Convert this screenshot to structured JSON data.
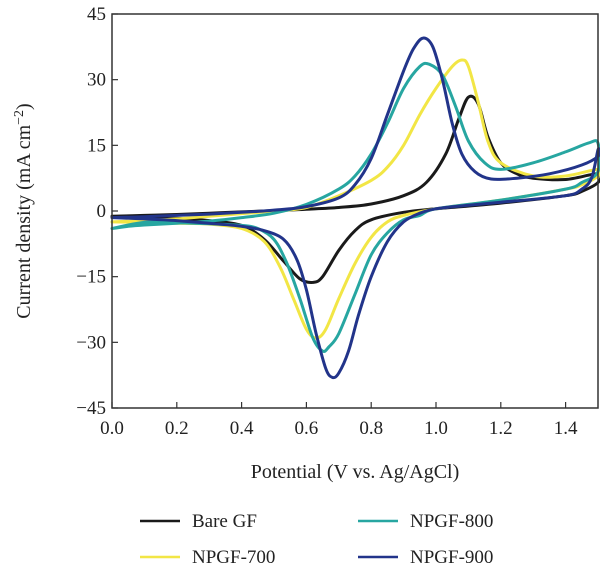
{
  "chart_data": {
    "type": "line",
    "xlabel": "Potential (V vs. Ag/AgCl)",
    "ylabel_main": "Current density (mA cm",
    "ylabel_sup": "−2",
    "ylabel_close": ")",
    "xlim": [
      0.0,
      1.5
    ],
    "ylim": [
      -45,
      45
    ],
    "xticks": [
      "0.0",
      "0.2",
      "0.4",
      "0.6",
      "0.8",
      "1.0",
      "1.2",
      "1.4"
    ],
    "xtick_values": [
      0.0,
      0.2,
      0.4,
      0.6,
      0.8,
      1.0,
      1.2,
      1.4
    ],
    "yticks": [
      "45",
      "30",
      "15",
      "0",
      "−15",
      "−30",
      "−45"
    ],
    "ytick_values": [
      45,
      30,
      15,
      0,
      -15,
      -30,
      -45
    ],
    "grid": false,
    "legend_position": "bottom",
    "series": [
      {
        "name": "Bare GF",
        "color": "#1a1a1a",
        "points": [
          [
            0.0,
            -1.2
          ],
          [
            0.1,
            -1.0
          ],
          [
            0.2,
            -0.8
          ],
          [
            0.3,
            -0.5
          ],
          [
            0.4,
            -0.2
          ],
          [
            0.5,
            0.1
          ],
          [
            0.6,
            0.4
          ],
          [
            0.7,
            0.8
          ],
          [
            0.8,
            1.6
          ],
          [
            0.9,
            3.5
          ],
          [
            0.97,
            6.5
          ],
          [
            1.03,
            13
          ],
          [
            1.07,
            21
          ],
          [
            1.1,
            26
          ],
          [
            1.13,
            24.5
          ],
          [
            1.16,
            17
          ],
          [
            1.2,
            11
          ],
          [
            1.25,
            8.5
          ],
          [
            1.3,
            7.5
          ],
          [
            1.4,
            7.2
          ],
          [
            1.5,
            8.5
          ],
          [
            1.5,
            6.5
          ],
          [
            1.45,
            4.5
          ],
          [
            1.4,
            3.5
          ],
          [
            1.2,
            1.8
          ],
          [
            1.0,
            0.5
          ],
          [
            0.9,
            -0.3
          ],
          [
            0.8,
            -2
          ],
          [
            0.75,
            -4.5
          ],
          [
            0.7,
            -9
          ],
          [
            0.65,
            -15
          ],
          [
            0.62,
            -16.3
          ],
          [
            0.58,
            -15.5
          ],
          [
            0.53,
            -11.5
          ],
          [
            0.47,
            -6.5
          ],
          [
            0.4,
            -3.3
          ],
          [
            0.3,
            -2.2
          ],
          [
            0.2,
            -1.7
          ],
          [
            0.1,
            -1.4
          ],
          [
            0.0,
            -1.2
          ]
        ]
      },
      {
        "name": "NPGF-700",
        "color": "#f2e645",
        "points": [
          [
            0.0,
            -2.5
          ],
          [
            0.1,
            -2.2
          ],
          [
            0.2,
            -1.8
          ],
          [
            0.3,
            -1.2
          ],
          [
            0.4,
            -0.6
          ],
          [
            0.5,
            0.0
          ],
          [
            0.6,
            0.8
          ],
          [
            0.7,
            3.5
          ],
          [
            0.8,
            7
          ],
          [
            0.85,
            10
          ],
          [
            0.9,
            15
          ],
          [
            0.95,
            22
          ],
          [
            1.0,
            28
          ],
          [
            1.05,
            33
          ],
          [
            1.08,
            34.5
          ],
          [
            1.1,
            33
          ],
          [
            1.13,
            25
          ],
          [
            1.16,
            16
          ],
          [
            1.2,
            11
          ],
          [
            1.3,
            8
          ],
          [
            1.4,
            8
          ],
          [
            1.5,
            9.5
          ],
          [
            1.5,
            8
          ],
          [
            1.45,
            6
          ],
          [
            1.4,
            5
          ],
          [
            1.2,
            2.5
          ],
          [
            1.0,
            0.5
          ],
          [
            0.9,
            -1
          ],
          [
            0.85,
            -2.5
          ],
          [
            0.8,
            -6
          ],
          [
            0.75,
            -12
          ],
          [
            0.7,
            -20
          ],
          [
            0.66,
            -27
          ],
          [
            0.63,
            -29
          ],
          [
            0.6,
            -27
          ],
          [
            0.56,
            -20
          ],
          [
            0.52,
            -13
          ],
          [
            0.47,
            -7
          ],
          [
            0.4,
            -4
          ],
          [
            0.3,
            -3
          ],
          [
            0.2,
            -2.8
          ],
          [
            0.1,
            -2.6
          ],
          [
            0.0,
            -2.5
          ]
        ]
      },
      {
        "name": "NPGF-800",
        "color": "#27a6a1",
        "points": [
          [
            0.0,
            -4
          ],
          [
            0.05,
            -3.5
          ],
          [
            0.1,
            -3.2
          ],
          [
            0.2,
            -2.8
          ],
          [
            0.3,
            -2.3
          ],
          [
            0.4,
            -1.5
          ],
          [
            0.5,
            -0.5
          ],
          [
            0.6,
            1.5
          ],
          [
            0.7,
            5
          ],
          [
            0.75,
            8
          ],
          [
            0.8,
            13
          ],
          [
            0.85,
            20
          ],
          [
            0.9,
            28
          ],
          [
            0.95,
            33
          ],
          [
            0.98,
            33.5
          ],
          [
            1.02,
            31
          ],
          [
            1.06,
            24
          ],
          [
            1.1,
            16
          ],
          [
            1.15,
            11
          ],
          [
            1.2,
            9.5
          ],
          [
            1.3,
            11
          ],
          [
            1.4,
            13.5
          ],
          [
            1.47,
            15.5
          ],
          [
            1.5,
            15.5
          ],
          [
            1.5,
            9
          ],
          [
            1.45,
            6.5
          ],
          [
            1.4,
            5
          ],
          [
            1.2,
            2.5
          ],
          [
            1.0,
            0.5
          ],
          [
            0.95,
            -1
          ],
          [
            0.9,
            -2
          ],
          [
            0.85,
            -5
          ],
          [
            0.8,
            -10
          ],
          [
            0.75,
            -19
          ],
          [
            0.7,
            -28
          ],
          [
            0.67,
            -31
          ],
          [
            0.65,
            -32
          ],
          [
            0.62,
            -29
          ],
          [
            0.58,
            -20
          ],
          [
            0.54,
            -12
          ],
          [
            0.5,
            -6.5
          ],
          [
            0.45,
            -4
          ],
          [
            0.4,
            -3.3
          ],
          [
            0.3,
            -2.9
          ],
          [
            0.2,
            -2.7
          ],
          [
            0.1,
            -2.6
          ],
          [
            0.0,
            -4
          ]
        ]
      },
      {
        "name": "NPGF-900",
        "color": "#22348a",
        "points": [
          [
            0.0,
            -1.5
          ],
          [
            0.1,
            -1.3
          ],
          [
            0.2,
            -1
          ],
          [
            0.3,
            -0.7
          ],
          [
            0.4,
            -0.3
          ],
          [
            0.5,
            0.2
          ],
          [
            0.6,
            1
          ],
          [
            0.7,
            3
          ],
          [
            0.75,
            6
          ],
          [
            0.8,
            12
          ],
          [
            0.85,
            22
          ],
          [
            0.9,
            32
          ],
          [
            0.93,
            37
          ],
          [
            0.96,
            39.5
          ],
          [
            0.99,
            37.5
          ],
          [
            1.02,
            30
          ],
          [
            1.05,
            20
          ],
          [
            1.08,
            13
          ],
          [
            1.12,
            9
          ],
          [
            1.17,
            7.3
          ],
          [
            1.25,
            7.5
          ],
          [
            1.35,
            8.5
          ],
          [
            1.45,
            10.5
          ],
          [
            1.5,
            12.5
          ],
          [
            1.5,
            14
          ],
          [
            1.48,
            7.5
          ],
          [
            1.45,
            5
          ],
          [
            1.4,
            3.5
          ],
          [
            1.2,
            2
          ],
          [
            1.1,
            1.3
          ],
          [
            1.0,
            0.5
          ],
          [
            0.95,
            -0.5
          ],
          [
            0.9,
            -2.5
          ],
          [
            0.85,
            -7
          ],
          [
            0.8,
            -15
          ],
          [
            0.76,
            -24
          ],
          [
            0.73,
            -32
          ],
          [
            0.7,
            -37
          ],
          [
            0.68,
            -38
          ],
          [
            0.66,
            -36
          ],
          [
            0.63,
            -28
          ],
          [
            0.6,
            -18
          ],
          [
            0.57,
            -11
          ],
          [
            0.53,
            -6.5
          ],
          [
            0.47,
            -4.5
          ],
          [
            0.4,
            -3.5
          ],
          [
            0.3,
            -2.8
          ],
          [
            0.2,
            -2.2
          ],
          [
            0.1,
            -1.8
          ],
          [
            0.0,
            -1.5
          ]
        ]
      }
    ],
    "legend": [
      {
        "label": "Bare GF",
        "color": "#1a1a1a"
      },
      {
        "label": "NPGF-800",
        "color": "#27a6a1"
      },
      {
        "label": "NPGF-700",
        "color": "#f2e645"
      },
      {
        "label": "NPGF-900",
        "color": "#22348a"
      }
    ]
  }
}
